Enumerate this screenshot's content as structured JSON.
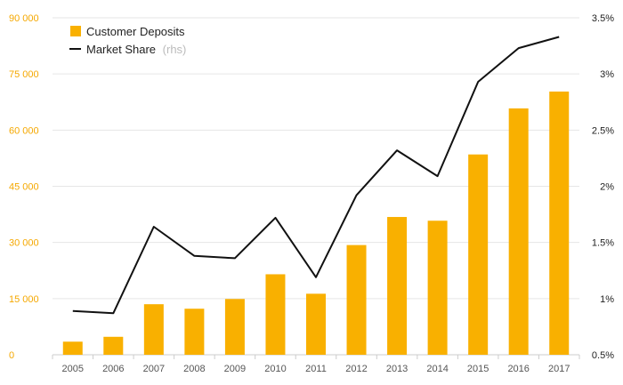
{
  "chart_data": {
    "type": "bar",
    "categories": [
      "2005",
      "2006",
      "2007",
      "2008",
      "2009",
      "2010",
      "2011",
      "2012",
      "2013",
      "2014",
      "2015",
      "2016",
      "2017"
    ],
    "series": [
      {
        "name": "Customer Deposits",
        "type": "bar",
        "axis": "left",
        "color": "#f9b000",
        "values": [
          3500,
          4800,
          13500,
          12300,
          14900,
          21500,
          16300,
          29300,
          36800,
          35800,
          53500,
          65800,
          70300
        ]
      },
      {
        "name": "Market Share",
        "name_note": "(rhs)",
        "type": "line",
        "axis": "right",
        "color": "#111111",
        "values": [
          0.89,
          0.87,
          1.64,
          1.38,
          1.36,
          1.72,
          1.19,
          1.92,
          2.32,
          2.09,
          2.93,
          3.23,
          3.33
        ]
      }
    ],
    "y_left": {
      "min": 0,
      "max": 90000,
      "ticks": [
        0,
        15000,
        30000,
        45000,
        60000,
        75000,
        90000
      ],
      "tick_labels": [
        "0",
        "15 000",
        "30 000",
        "45 000",
        "60 000",
        "75 000",
        "90 000"
      ],
      "color": "#f5a800"
    },
    "y_right": {
      "min": 0.5,
      "max": 3.5,
      "ticks": [
        0.5,
        1,
        1.5,
        2,
        2.5,
        3,
        3.5
      ],
      "tick_labels": [
        "0.5%",
        "1%",
        "1.5%",
        "2%",
        "2.5%",
        "3%",
        "3.5%"
      ]
    },
    "grid": true,
    "legend_position": "top-left",
    "title": "",
    "xlabel": "",
    "ylabel": ""
  }
}
